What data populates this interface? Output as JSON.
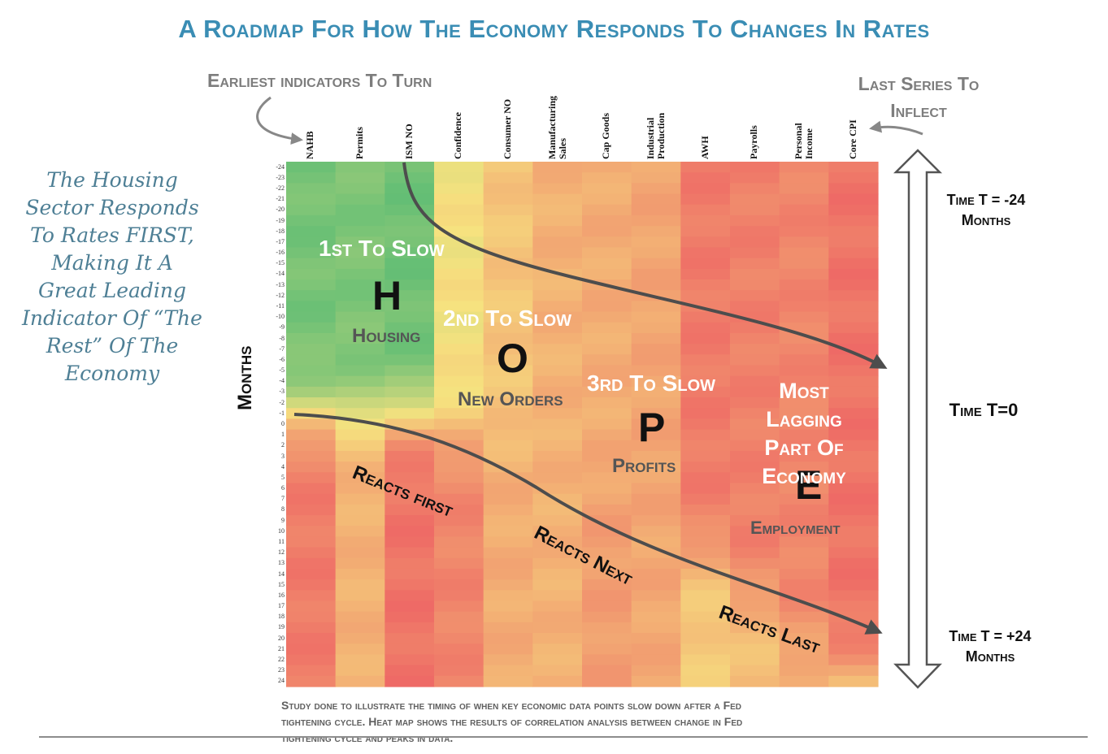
{
  "title": "A Roadmap For How The Economy Responds To Changes In Rates",
  "earliest_label": "Earliest indicators To Turn",
  "last_series_label_1": "Last Series To",
  "last_series_label_2": "Inflect",
  "side_note": [
    "The Housing",
    "Sector Responds",
    "To Rates FIRST,",
    "Making It A",
    "Great Leading",
    "Indicator Of “The",
    "Rest” Of The",
    "Economy"
  ],
  "months_axis_label": "Months",
  "time_top": {
    "line1": "Time T = -24",
    "line2": "Months"
  },
  "time_mid": "Time T=0",
  "time_bottom": {
    "line1": "Time T = +24",
    "line2": "Months"
  },
  "overlay": {
    "first_slow": "1st To Slow",
    "letter_h": "H",
    "housing": "Housing",
    "second_slow": "2nd To Slow",
    "letter_o": "O",
    "new_orders": "New Orders",
    "third_slow": "3rd To Slow",
    "letter_p": "P",
    "profits": "Profits",
    "most_lagging": [
      "Most",
      "Lagging",
      "Part Of",
      "Economy"
    ],
    "letter_e": "E",
    "employment": "Employment",
    "reacts_first": "Reacts first",
    "reacts_next": "Reacts Next",
    "reacts_last": "Reacts Last"
  },
  "footnote": [
    "Study done to illustrate the timing of when key economic data points slow down after a Fed",
    "tightening cycle. Heat map shows the results of correlation analysis between change in Fed",
    "tightening cycle and peaks in data."
  ],
  "colors": {
    "green": "#57bb74",
    "yellow": "#f6e27f",
    "orange": "#f9b06b",
    "red": "#ee6865",
    "title": "#3a8db4"
  },
  "chart_data": {
    "type": "heatmap",
    "title": "A Roadmap For How The Economy Responds To Changes In Rates",
    "columns": [
      "NAHB",
      "Permits",
      "ISM NO",
      "Confidence",
      "Consumer NO",
      "Manufacturing Sales",
      "Cap Goods",
      "Industrial Production",
      "AWH",
      "Payrolls",
      "Personal Income",
      "Core CPI"
    ],
    "ylabel": "Months",
    "rows": [
      -24,
      -23,
      -22,
      -21,
      -20,
      -19,
      -18,
      -17,
      -16,
      -15,
      -14,
      -13,
      -12,
      -11,
      -10,
      -9,
      -8,
      -7,
      -6,
      -5,
      -4,
      -3,
      -2,
      -1,
      0,
      1,
      2,
      3,
      4,
      5,
      6,
      7,
      8,
      9,
      10,
      11,
      12,
      13,
      14,
      15,
      16,
      17,
      18,
      19,
      20,
      21,
      22,
      23,
      24
    ],
    "value_scale": "0 = green (strong positive correlation), 0.5 = yellow, 1 = red",
    "transition_month": [
      -1,
      -1,
      -1,
      1,
      2,
      4,
      6,
      9,
      12,
      16,
      20,
      23
    ],
    "early_level": [
      0.1,
      0.12,
      0.08,
      0.5,
      0.62,
      0.7,
      0.72,
      0.75,
      0.92,
      0.9,
      0.88,
      0.95
    ],
    "late_level": [
      0.92,
      0.7,
      0.95,
      0.88,
      0.72,
      0.7,
      0.78,
      0.74,
      0.6,
      0.64,
      0.68,
      0.55
    ],
    "row_tick_labels": [
      "-24",
      "-23",
      "-22",
      "-21",
      "-20",
      "-19",
      "-18",
      "-17",
      "-16",
      "-15",
      "-14",
      "-13",
      "-12",
      "-11",
      "-10",
      "-9",
      "-8",
      "-7",
      "-6",
      "-5",
      "-4",
      "-3",
      "-2",
      "-1",
      "0",
      "1",
      "2",
      "3",
      "4",
      "5",
      "6",
      "7",
      "8",
      "9",
      "10",
      "11",
      "12",
      "13",
      "14",
      "15",
      "16",
      "17",
      "18",
      "19",
      "20",
      "21",
      "22",
      "23",
      "24"
    ]
  }
}
